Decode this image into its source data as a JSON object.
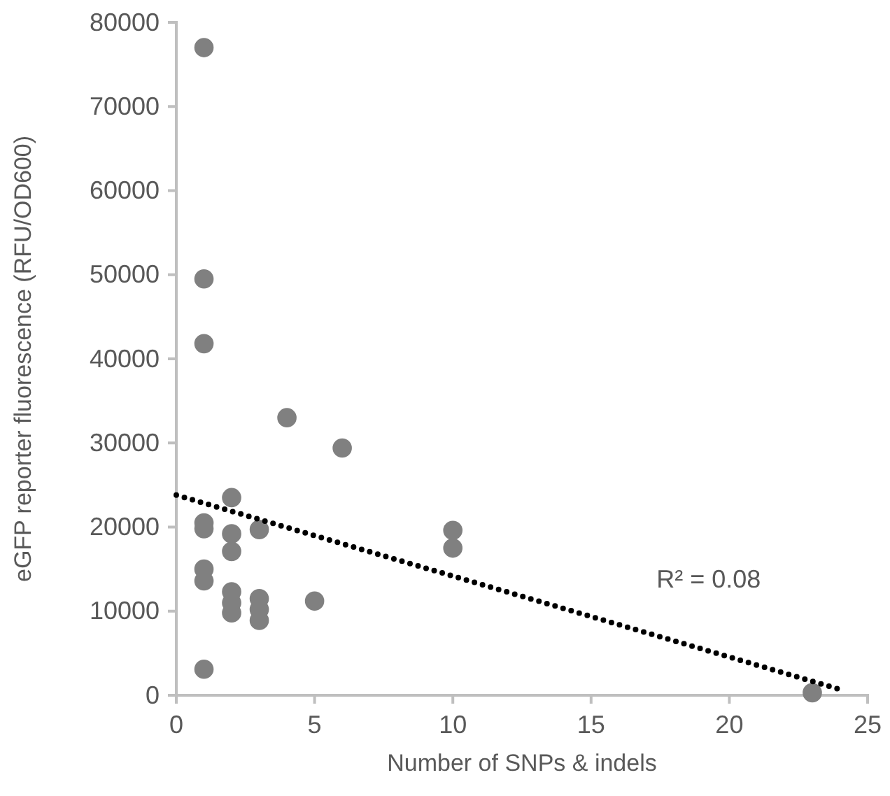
{
  "chart_data": {
    "type": "scatter",
    "xlabel": "Number of SNPs & indels",
    "ylabel": "eGFP reporter fluorescence (RFU/OD600)",
    "xlim": [
      0,
      25
    ],
    "xticks": [
      0,
      5,
      10,
      15,
      20,
      25
    ],
    "ylim": [
      0,
      80000
    ],
    "yticks": [
      0,
      10000,
      20000,
      30000,
      40000,
      50000,
      60000,
      70000,
      80000
    ],
    "grid": false,
    "series": [
      {
        "color": "#808080",
        "marker": "circle",
        "x": [
          1,
          1,
          1,
          1,
          1,
          1,
          1,
          1,
          2,
          2,
          2,
          2,
          2,
          2,
          3,
          3,
          3,
          3,
          4,
          5,
          6,
          10,
          10,
          23
        ],
        "values": [
          77000,
          49500,
          41800,
          20500,
          19800,
          15000,
          13600,
          3100,
          23500,
          19200,
          17100,
          12300,
          11000,
          9800,
          19700,
          11500,
          10200,
          8900,
          33000,
          11200,
          29400,
          19600,
          17500,
          300
        ]
      },
      {
        "type": "line",
        "color": "#000000",
        "line_style": "dotted",
        "x": [
          0,
          24.1
        ],
        "values": [
          23800,
          600
        ]
      }
    ],
    "annotations": [
      "R² = 0.08"
    ]
  }
}
